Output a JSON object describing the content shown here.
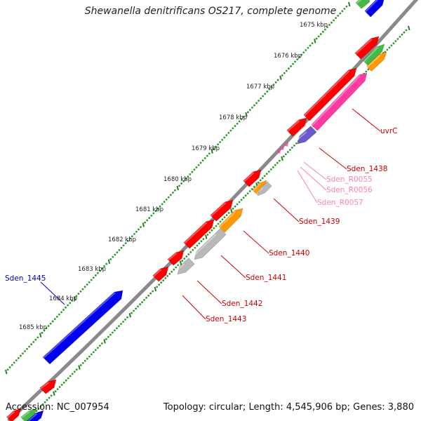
{
  "title": "Shewanella denitrificans OS217, complete genome",
  "footer": {
    "accession": "Accession: NC_007954",
    "summary": "Topology: circular; Length: 4,545,906 bp; Genes: 3,880"
  },
  "colors": {
    "backbone": "#8a8a8a",
    "dots": "#2e9a2e",
    "tick": "#2a7a2a",
    "gene_red": "#ff0000",
    "gene_pink": "#ff3aa0",
    "gene_orange": "#ff9900",
    "gene_grey": "#b8b8b8",
    "gene_blue": "#0000ee",
    "gene_purple": "#6a5acd",
    "gene_green": "#44bb44",
    "label_red": "#cc0000",
    "label_pink": "#ff80b0",
    "label_blue": "#0000cc"
  },
  "scale_labels": [
    "1675 kbp",
    "1676 kbp",
    "1677 kbp",
    "1678 kbp",
    "1679 kbp",
    "1680 kbp",
    "1681 kbp",
    "1682 kbp",
    "1683 kbp",
    "1684 kbp",
    "1685 kbp"
  ],
  "gene_labels": [
    {
      "text": "uvrC",
      "tone": "red"
    },
    {
      "text": "Sden_1438",
      "tone": "red"
    },
    {
      "text": "Sden_R0055",
      "tone": "pink"
    },
    {
      "text": "Sden_R0056",
      "tone": "pink"
    },
    {
      "text": "Sden_R0057",
      "tone": "pink"
    },
    {
      "text": "Sden_1439",
      "tone": "red"
    },
    {
      "text": "Sden_1440",
      "tone": "red"
    },
    {
      "text": "Sden_1441",
      "tone": "red"
    },
    {
      "text": "Sden_1442",
      "tone": "red"
    },
    {
      "text": "Sden_1443",
      "tone": "red"
    },
    {
      "text": "Sden_1445",
      "tone": "blue"
    }
  ]
}
